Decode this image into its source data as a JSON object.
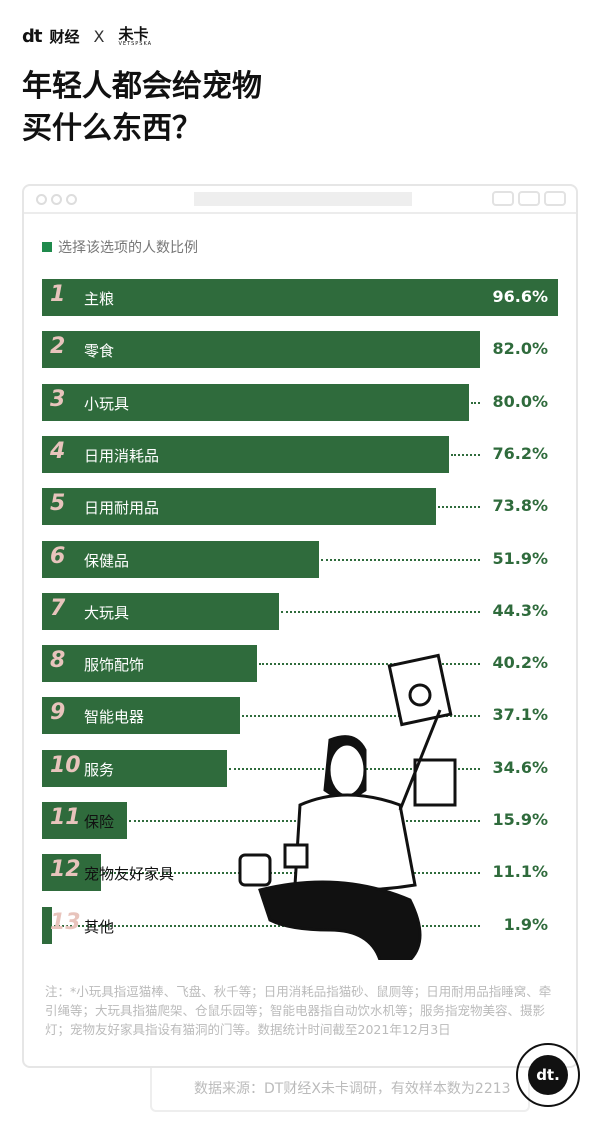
{
  "brand": {
    "dt": "dt",
    "name": "财经",
    "x": "X",
    "partner": "未卡",
    "partner_sub": "VETSPSKA"
  },
  "title_line1": "年轻人都会给宠物",
  "title_line2": "买什么东西？",
  "colors": {
    "bar": "#2f6b3c",
    "legend": "#1f8a4c"
  },
  "chart_data": {
    "type": "bar",
    "orientation": "horizontal",
    "legend": "选择该选项的人数比例",
    "unit": "%",
    "categories": [
      "主粮",
      "零食",
      "小玩具",
      "日用消耗品",
      "日用耐用品",
      "保健品",
      "大玩具",
      "服饰配饰",
      "智能电器",
      "服务",
      "保险",
      "宠物友好家具",
      "其他"
    ],
    "values": [
      96.6,
      82.0,
      80.0,
      76.2,
      73.8,
      51.9,
      44.3,
      40.2,
      37.1,
      34.6,
      15.9,
      11.1,
      1.9
    ],
    "labels": [
      "96.6%",
      "82.0%",
      "80.0%",
      "76.2%",
      "73.8%",
      "51.9%",
      "44.3%",
      "40.2%",
      "37.1%",
      "34.6%",
      "15.9%",
      "11.1%",
      "1.9%"
    ],
    "xlim": [
      0,
      96.6
    ]
  },
  "note": "注：*小玩具指逗猫棒、飞盘、秋千等；日用消耗品指猫砂、鼠厕等；日用耐用品指睡窝、牵引绳等；大玩具指猫爬架、仓鼠乐园等；智能电器指自动饮水机等；服务指宠物美容、摄影灯；宠物友好家具指设有猫洞的门等。数据统计时间截至2021年12月3日",
  "source": "数据来源：DT财经X未卡调研，有效样本数为2213",
  "logo": "dt."
}
